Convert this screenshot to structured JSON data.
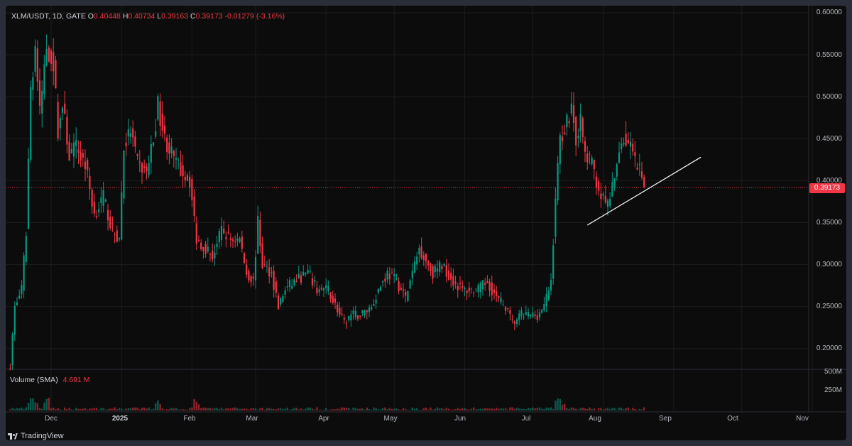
{
  "legend": {
    "symbol": "XLM/USDT, 1D, GATE",
    "open_label": "O",
    "open": "0.40448",
    "high_label": "H",
    "high": "0.40734",
    "low_label": "L",
    "low": "0.39163",
    "close_label": "C",
    "close": "0.39173",
    "change": "-0.01279 (-3.16%)"
  },
  "volume_legend": {
    "label": "Volume (SMA)",
    "value": "4.691 M"
  },
  "price_axis": [
    "0.60000",
    "0.55000",
    "0.50000",
    "0.45000",
    "0.40000",
    "0.35000",
    "0.30000",
    "0.25000",
    "0.20000"
  ],
  "volume_axis": [
    "500M",
    "250M"
  ],
  "time_axis": [
    "Dec",
    "2025",
    "Feb",
    "Mar",
    "Apr",
    "May",
    "Jun",
    "Jul",
    "Aug",
    "Sep",
    "Oct",
    "Nov"
  ],
  "last_price": "0.39173",
  "brand": "TradingView",
  "colors": {
    "up": "#089981",
    "down": "#f23645",
    "background": "#0c0c0c",
    "trendline": "#ffffff"
  },
  "chart_data": {
    "type": "candlestick",
    "title": "XLM/USDT, 1D, GATE",
    "ylim": [
      0.18,
      0.61
    ],
    "grid": true,
    "anchors": [
      [
        "2024-11-13",
        0.18
      ],
      [
        "2024-11-15",
        0.25
      ],
      [
        "2024-11-18",
        0.27
      ],
      [
        "2024-11-20",
        0.34
      ],
      [
        "2024-11-22",
        0.51
      ],
      [
        "2024-11-24",
        0.56
      ],
      [
        "2024-11-26",
        0.48
      ],
      [
        "2024-11-29",
        0.56
      ],
      [
        "2024-12-02",
        0.54
      ],
      [
        "2024-12-04",
        0.46
      ],
      [
        "2024-12-06",
        0.49
      ],
      [
        "2024-12-09",
        0.43
      ],
      [
        "2024-12-12",
        0.44
      ],
      [
        "2024-12-16",
        0.42
      ],
      [
        "2024-12-20",
        0.36
      ],
      [
        "2024-12-24",
        0.38
      ],
      [
        "2024-12-28",
        0.34
      ],
      [
        "2024-12-31",
        0.33
      ],
      [
        "2025-01-02",
        0.44
      ],
      [
        "2025-01-05",
        0.46
      ],
      [
        "2025-01-08",
        0.42
      ],
      [
        "2025-01-12",
        0.41
      ],
      [
        "2025-01-15",
        0.45
      ],
      [
        "2025-01-17",
        0.49
      ],
      [
        "2025-01-20",
        0.45
      ],
      [
        "2025-01-25",
        0.42
      ],
      [
        "2025-01-31",
        0.4
      ],
      [
        "2025-02-03",
        0.33
      ],
      [
        "2025-02-07",
        0.32
      ],
      [
        "2025-02-10",
        0.31
      ],
      [
        "2025-02-14",
        0.34
      ],
      [
        "2025-02-18",
        0.33
      ],
      [
        "2025-02-22",
        0.33
      ],
      [
        "2025-02-25",
        0.29
      ],
      [
        "2025-02-28",
        0.28
      ],
      [
        "2025-03-02",
        0.35
      ],
      [
        "2025-03-04",
        0.3
      ],
      [
        "2025-03-08",
        0.29
      ],
      [
        "2025-03-11",
        0.25
      ],
      [
        "2025-03-14",
        0.27
      ],
      [
        "2025-03-18",
        0.28
      ],
      [
        "2025-03-24",
        0.29
      ],
      [
        "2025-03-28",
        0.27
      ],
      [
        "2025-04-02",
        0.27
      ],
      [
        "2025-04-07",
        0.24
      ],
      [
        "2025-04-09",
        0.23
      ],
      [
        "2025-04-12",
        0.24
      ],
      [
        "2025-04-16",
        0.24
      ],
      [
        "2025-04-21",
        0.25
      ],
      [
        "2025-04-24",
        0.27
      ],
      [
        "2025-04-28",
        0.29
      ],
      [
        "2025-05-02",
        0.28
      ],
      [
        "2025-05-06",
        0.26
      ],
      [
        "2025-05-09",
        0.29
      ],
      [
        "2025-05-12",
        0.32
      ],
      [
        "2025-05-14",
        0.31
      ],
      [
        "2025-05-18",
        0.29
      ],
      [
        "2025-05-22",
        0.3
      ],
      [
        "2025-05-27",
        0.28
      ],
      [
        "2025-05-31",
        0.27
      ],
      [
        "2025-06-03",
        0.27
      ],
      [
        "2025-06-07",
        0.27
      ],
      [
        "2025-06-11",
        0.28
      ],
      [
        "2025-06-15",
        0.26
      ],
      [
        "2025-06-19",
        0.25
      ],
      [
        "2025-06-22",
        0.23
      ],
      [
        "2025-06-26",
        0.24
      ],
      [
        "2025-06-30",
        0.24
      ],
      [
        "2025-07-03",
        0.24
      ],
      [
        "2025-07-06",
        0.25
      ],
      [
        "2025-07-09",
        0.28
      ],
      [
        "2025-07-11",
        0.38
      ],
      [
        "2025-07-13",
        0.45
      ],
      [
        "2025-07-16",
        0.47
      ],
      [
        "2025-07-18",
        0.49
      ],
      [
        "2025-07-20",
        0.45
      ],
      [
        "2025-07-22",
        0.47
      ],
      [
        "2025-07-24",
        0.43
      ],
      [
        "2025-07-27",
        0.42
      ],
      [
        "2025-07-30",
        0.39
      ],
      [
        "2025-08-02",
        0.37
      ],
      [
        "2025-08-04",
        0.38
      ],
      [
        "2025-08-06",
        0.4
      ],
      [
        "2025-08-08",
        0.44
      ],
      [
        "2025-08-10",
        0.45
      ],
      [
        "2025-08-13",
        0.44
      ],
      [
        "2025-08-15",
        0.42
      ],
      [
        "2025-08-17",
        0.41
      ],
      [
        "2025-08-19",
        0.39173
      ]
    ],
    "last_candle": {
      "open": 0.40448,
      "high": 0.40734,
      "low": 0.39163,
      "close": 0.39173,
      "change": -0.01279,
      "change_pct": -3.16
    },
    "trendline": [
      [
        "2025-07-25",
        0.347
      ],
      [
        "2025-09-13",
        0.428
      ]
    ],
    "volume": {
      "peak_dates": [
        "2024-11-22",
        "2024-11-24",
        "2024-11-29",
        "2025-01-17",
        "2025-02-03",
        "2025-07-12",
        "2025-07-14"
      ],
      "axis_max": "500M"
    }
  }
}
